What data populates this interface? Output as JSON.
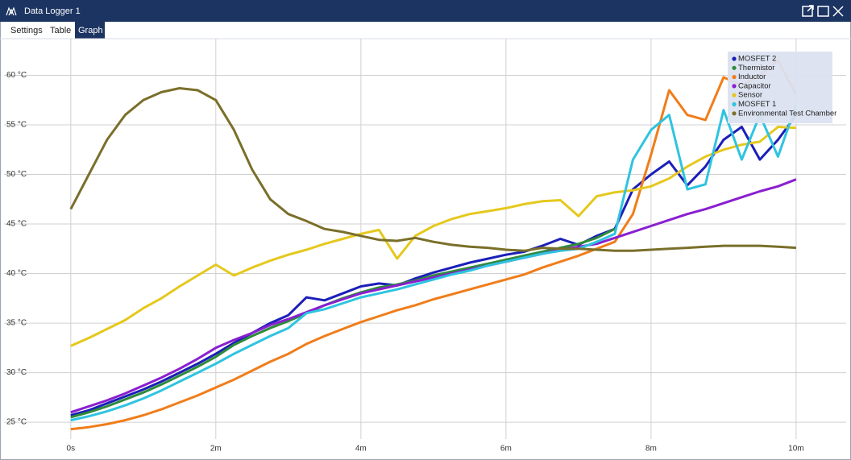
{
  "window": {
    "title": "Data Logger 1",
    "tabs": [
      "Settings",
      "Table",
      "Graph"
    ]
  },
  "chart_data": {
    "type": "line",
    "x": [
      0,
      0.25,
      0.5,
      0.75,
      1,
      1.25,
      1.5,
      1.75,
      2,
      2.25,
      2.5,
      2.75,
      3,
      3.25,
      3.5,
      3.75,
      4,
      4.25,
      4.5,
      4.75,
      5,
      5.25,
      5.5,
      5.75,
      6,
      6.25,
      6.5,
      6.75,
      7,
      7.25,
      7.5,
      7.75,
      8,
      8.25,
      8.5,
      8.75,
      9,
      9.25,
      9.5,
      9.75,
      10
    ],
    "xlim": [
      -0.92,
      10.69
    ],
    "xticks": [
      {
        "value": 0,
        "label": "0s"
      },
      {
        "value": 2,
        "label": "2m"
      },
      {
        "value": 4,
        "label": "4m"
      },
      {
        "value": 6,
        "label": "6m"
      },
      {
        "value": 8,
        "label": "8m"
      },
      {
        "value": 10,
        "label": "10m"
      }
    ],
    "ylim": [
      23.3,
      63.7
    ],
    "yticks": [
      {
        "value": 25,
        "label": "25 °C"
      },
      {
        "value": 30,
        "label": "30 °C"
      },
      {
        "value": 35,
        "label": "35 °C"
      },
      {
        "value": 40,
        "label": "40 °C"
      },
      {
        "value": 45,
        "label": "45 °C"
      },
      {
        "value": 50,
        "label": "50 °C"
      },
      {
        "value": 55,
        "label": "55 °C"
      },
      {
        "value": 60,
        "label": "60 °C"
      }
    ],
    "grid": true,
    "legend": "upper right",
    "series": [
      {
        "name": "MOSFET 2",
        "color": "#1b1fb8",
        "values": [
          25.7,
          26.2,
          26.9,
          27.6,
          28.3,
          29.1,
          30,
          30.9,
          31.9,
          33,
          34,
          35,
          35.8,
          37.6,
          37.3,
          38,
          38.7,
          39,
          38.8,
          39.5,
          40.1,
          40.6,
          41.1,
          41.5,
          41.9,
          42.2,
          42.8,
          43.5,
          42.9,
          43.8,
          44.5,
          48.5,
          50,
          51.3,
          48.9,
          50.8,
          53.5,
          54.8,
          51.5,
          53.5,
          56
        ]
      },
      {
        "name": "Thermistor",
        "color": "#2e8b3a",
        "values": [
          25.5,
          26,
          26.6,
          27.3,
          28,
          28.8,
          29.7,
          30.6,
          31.6,
          32.8,
          33.7,
          34.5,
          35.2,
          36,
          36.8,
          37.5,
          38.1,
          38.6,
          38.9,
          39.3,
          39.8,
          40.2,
          40.6,
          41,
          41.4,
          41.8,
          42.2,
          42.6,
          43,
          43.6,
          44.5,
          null,
          null,
          null,
          null,
          null,
          null,
          null,
          null,
          null,
          null
        ]
      },
      {
        "name": "Inductor",
        "color": "#f07d1a",
        "values": [
          24.3,
          24.5,
          24.8,
          25.2,
          25.7,
          26.3,
          27,
          27.7,
          28.5,
          29.3,
          30.2,
          31.1,
          31.9,
          32.9,
          33.7,
          34.4,
          35.1,
          35.7,
          36.3,
          36.8,
          37.4,
          37.9,
          38.4,
          38.9,
          39.4,
          39.9,
          40.6,
          41.2,
          41.8,
          42.5,
          43.2,
          46,
          52,
          58.5,
          56,
          55.5,
          59.8,
          59,
          60,
          61.5,
          58
        ]
      },
      {
        "name": "Capacitor",
        "color": "#8a1fd1",
        "values": [
          26,
          26.6,
          27.2,
          27.9,
          28.7,
          29.5,
          30.4,
          31.4,
          32.5,
          33.3,
          34,
          34.8,
          35.4,
          36.1,
          36.8,
          37.4,
          38,
          38.4,
          38.8,
          39.2,
          39.6,
          40,
          40.4,
          40.8,
          41.2,
          41.6,
          42,
          42.4,
          42.7,
          43,
          43.6,
          44.2,
          44.8,
          45.4,
          46,
          46.5,
          47.1,
          47.7,
          48.3,
          48.8,
          49.5
        ]
      },
      {
        "name": "Sensor",
        "color": "#e5c81d",
        "values": [
          32.7,
          33.5,
          34.4,
          35.3,
          36.5,
          37.5,
          38.7,
          39.8,
          40.9,
          39.8,
          40.6,
          41.3,
          41.9,
          42.4,
          43,
          43.5,
          44,
          44.4,
          41.5,
          43.8,
          44.8,
          45.5,
          46,
          46.3,
          46.6,
          47,
          47.3,
          47.4,
          45.8,
          47.8,
          48.2,
          48.4,
          48.8,
          49.6,
          50.8,
          51.8,
          52.5,
          53,
          53.3,
          54.8,
          54.7
        ]
      },
      {
        "name": "MOSFET 1",
        "color": "#2ec4e0",
        "values": [
          25.2,
          25.6,
          26.1,
          26.7,
          27.4,
          28.2,
          29.1,
          30,
          30.9,
          31.9,
          32.8,
          33.7,
          34.5,
          36,
          36.4,
          37,
          37.6,
          38,
          38.4,
          38.9,
          39.4,
          39.9,
          40.3,
          40.8,
          41.2,
          41.6,
          42,
          42.3,
          42.5,
          43.2,
          44,
          51.5,
          54.5,
          56,
          48.5,
          49,
          56.5,
          51.5,
          56,
          51.8,
          57
        ]
      },
      {
        "name": "Environmental Test Chamber",
        "color": "#7a6f2a",
        "values": [
          46.5,
          50,
          53.5,
          56,
          57.5,
          58.3,
          58.7,
          58.5,
          57.5,
          54.5,
          50.5,
          47.5,
          46,
          45.3,
          44.5,
          44.2,
          43.8,
          43.4,
          43.3,
          43.6,
          43.2,
          42.9,
          42.7,
          42.6,
          42.4,
          42.3,
          42.6,
          42.5,
          42.5,
          42.4,
          42.3,
          42.3,
          42.4,
          42.5,
          42.6,
          42.7,
          42.8,
          42.8,
          42.8,
          42.7,
          42.6
        ]
      }
    ]
  }
}
